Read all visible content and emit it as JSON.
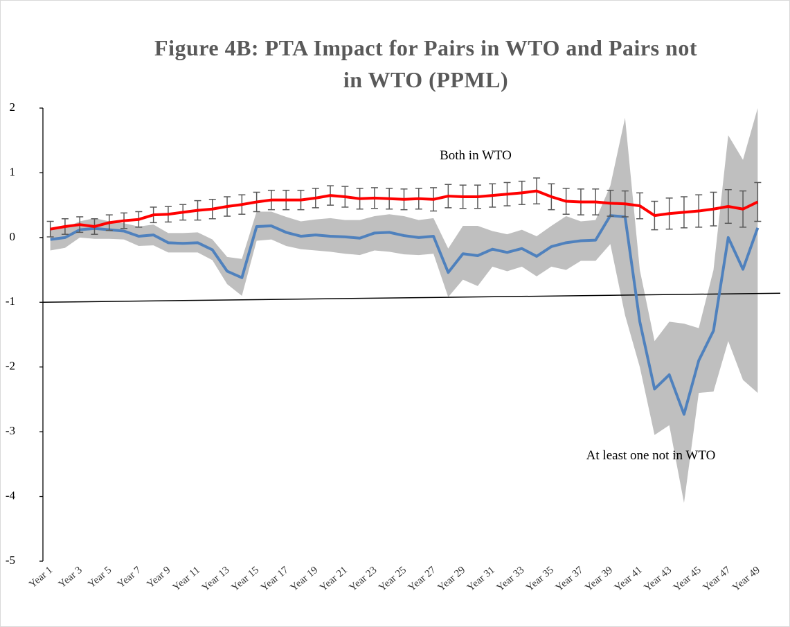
{
  "chart_data": {
    "type": "line",
    "title": "Figure 4B: PTA Impact for Pairs in WTO and Pairs not in WTO (PPML)",
    "categories": [
      "Year 1",
      null,
      "Year 3",
      null,
      "Year 5",
      null,
      "Year 7",
      null,
      "Year 9",
      null,
      "Year 11",
      null,
      "Year 13",
      null,
      "Year 15",
      null,
      "Year 17",
      null,
      "Year 19",
      null,
      "Year 21",
      null,
      "Year 23",
      null,
      "Year 25",
      null,
      "Year 27",
      null,
      "Year 29",
      null,
      "Year 31",
      null,
      "Year 33",
      null,
      "Year 35",
      null,
      "Year 37",
      null,
      "Year 39",
      null,
      "Year 41",
      null,
      "Year 43",
      null,
      "Year 45",
      null,
      "Year 47",
      null,
      "Year 49"
    ],
    "series": [
      {
        "name": "Both in WTO",
        "color": "#ff0000",
        "error_color": "#595959",
        "values": [
          0.13,
          0.17,
          0.2,
          0.17,
          0.23,
          0.26,
          0.28,
          0.35,
          0.36,
          0.39,
          0.42,
          0.44,
          0.48,
          0.51,
          0.55,
          0.58,
          0.58,
          0.58,
          0.61,
          0.65,
          0.63,
          0.6,
          0.61,
          0.6,
          0.59,
          0.6,
          0.59,
          0.64,
          0.63,
          0.63,
          0.65,
          0.67,
          0.69,
          0.72,
          0.63,
          0.56,
          0.55,
          0.55,
          0.53,
          0.52,
          0.49,
          0.34,
          0.37,
          0.39,
          0.41,
          0.44,
          0.48,
          0.44,
          0.55
        ],
        "errors": [
          0.12,
          0.12,
          0.12,
          0.12,
          0.12,
          0.12,
          0.12,
          0.12,
          0.12,
          0.12,
          0.15,
          0.15,
          0.15,
          0.15,
          0.15,
          0.15,
          0.15,
          0.15,
          0.15,
          0.15,
          0.16,
          0.16,
          0.16,
          0.16,
          0.16,
          0.16,
          0.18,
          0.18,
          0.18,
          0.18,
          0.18,
          0.18,
          0.18,
          0.2,
          0.2,
          0.2,
          0.2,
          0.2,
          0.2,
          0.2,
          0.2,
          0.22,
          0.24,
          0.24,
          0.25,
          0.26,
          0.26,
          0.28,
          0.3
        ]
      },
      {
        "name": "At least one not in WTO",
        "color": "#4f81bd",
        "band_color": "#bfbfbf",
        "values": [
          -0.03,
          0.0,
          0.12,
          0.14,
          0.12,
          0.1,
          0.02,
          0.04,
          -0.08,
          -0.09,
          -0.08,
          -0.19,
          -0.52,
          -0.62,
          0.17,
          0.18,
          0.08,
          0.02,
          0.04,
          0.02,
          0.01,
          -0.01,
          0.07,
          0.08,
          0.03,
          0.0,
          0.02,
          -0.54,
          -0.25,
          -0.28,
          -0.18,
          -0.23,
          -0.17,
          -0.29,
          -0.14,
          -0.08,
          -0.05,
          -0.04,
          0.34,
          0.32,
          -1.3,
          -2.34,
          -2.12,
          -2.73,
          -1.9,
          -1.44,
          0.0,
          -0.49,
          0.15
        ],
        "upper": [
          0.15,
          0.15,
          0.25,
          0.3,
          0.25,
          0.22,
          0.17,
          0.2,
          0.07,
          0.07,
          0.08,
          -0.03,
          -0.3,
          -0.33,
          0.4,
          0.4,
          0.32,
          0.25,
          0.28,
          0.3,
          0.27,
          0.27,
          0.33,
          0.36,
          0.33,
          0.27,
          0.3,
          -0.17,
          0.18,
          0.18,
          0.1,
          0.05,
          0.12,
          0.02,
          0.18,
          0.33,
          0.25,
          0.27,
          0.8,
          1.85,
          -0.5,
          -1.6,
          -1.3,
          -1.33,
          -1.4,
          -0.5,
          1.58,
          1.2,
          2.0
        ],
        "lower": [
          -0.2,
          -0.16,
          0.0,
          -0.02,
          -0.02,
          -0.03,
          -0.13,
          -0.12,
          -0.23,
          -0.23,
          -0.23,
          -0.35,
          -0.72,
          -0.9,
          -0.05,
          -0.03,
          -0.13,
          -0.18,
          -0.2,
          -0.22,
          -0.25,
          -0.27,
          -0.2,
          -0.22,
          -0.26,
          -0.27,
          -0.25,
          -0.92,
          -0.65,
          -0.75,
          -0.45,
          -0.52,
          -0.45,
          -0.6,
          -0.45,
          -0.5,
          -0.36,
          -0.36,
          -0.1,
          -1.2,
          -2.0,
          -3.05,
          -2.9,
          -4.1,
          -2.4,
          -2.38,
          -1.6,
          -2.2,
          -2.4
        ]
      }
    ],
    "trend_line": [
      -1.0,
      -0.86
    ],
    "ylim": [
      -5,
      2
    ],
    "yticks": [
      -5,
      -4,
      -3,
      -2,
      -1,
      0,
      1,
      2
    ]
  }
}
